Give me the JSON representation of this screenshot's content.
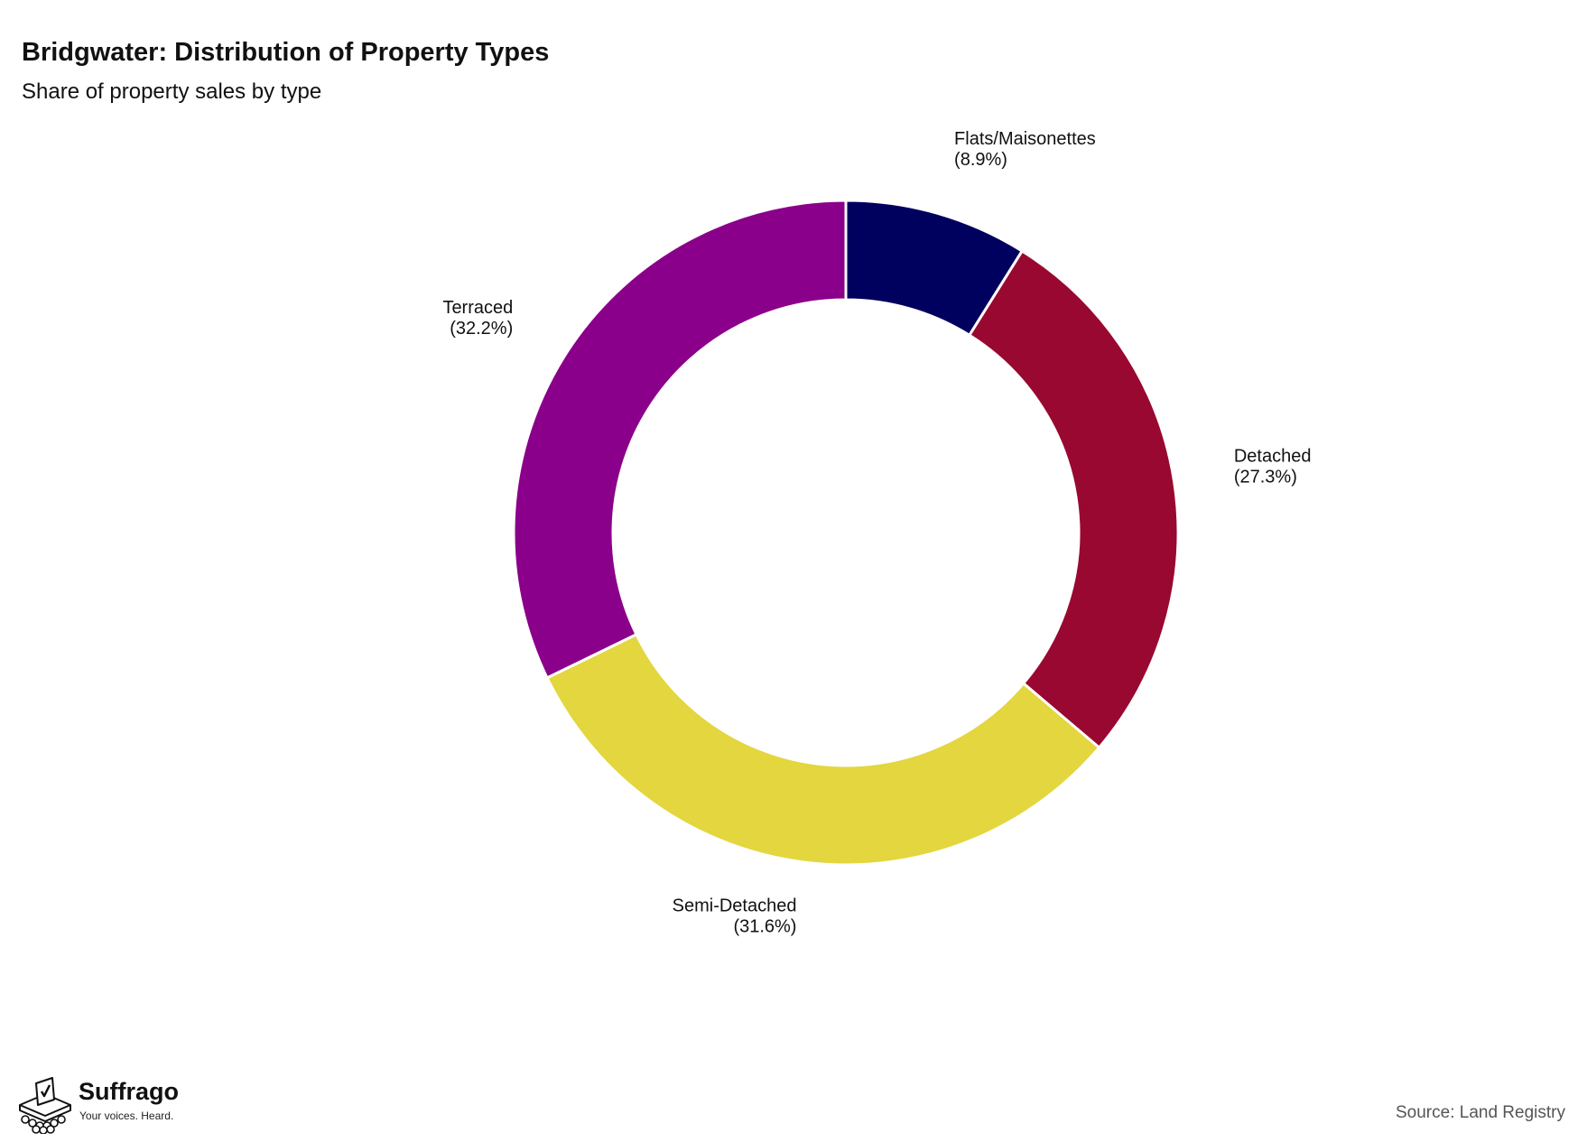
{
  "title": "Bridgwater: Distribution of Property Types",
  "subtitle": "Share of property sales by type",
  "source": "Source: Land Registry",
  "logo": {
    "name": "Suffrago",
    "tagline": "Your voices. Heard."
  },
  "chart_data": {
    "type": "pie",
    "variant": "donut",
    "title": "Bridgwater: Distribution of Property Types",
    "subtitle": "Share of property sales by type",
    "legend": "none",
    "labels_outside": true,
    "slices": [
      {
        "label": "Flats/Maisonettes",
        "value": 8.9,
        "value_label": "(8.9%)",
        "color": "#00005e"
      },
      {
        "label": "Detached",
        "value": 27.3,
        "value_label": "(27.3%)",
        "color": "#990830"
      },
      {
        "label": "Semi-Detached",
        "value": 31.6,
        "value_label": "(31.6%)",
        "color": "#e3d63f"
      },
      {
        "label": "Terraced",
        "value": 32.2,
        "value_label": "(32.2%)",
        "color": "#8a008a"
      }
    ]
  }
}
